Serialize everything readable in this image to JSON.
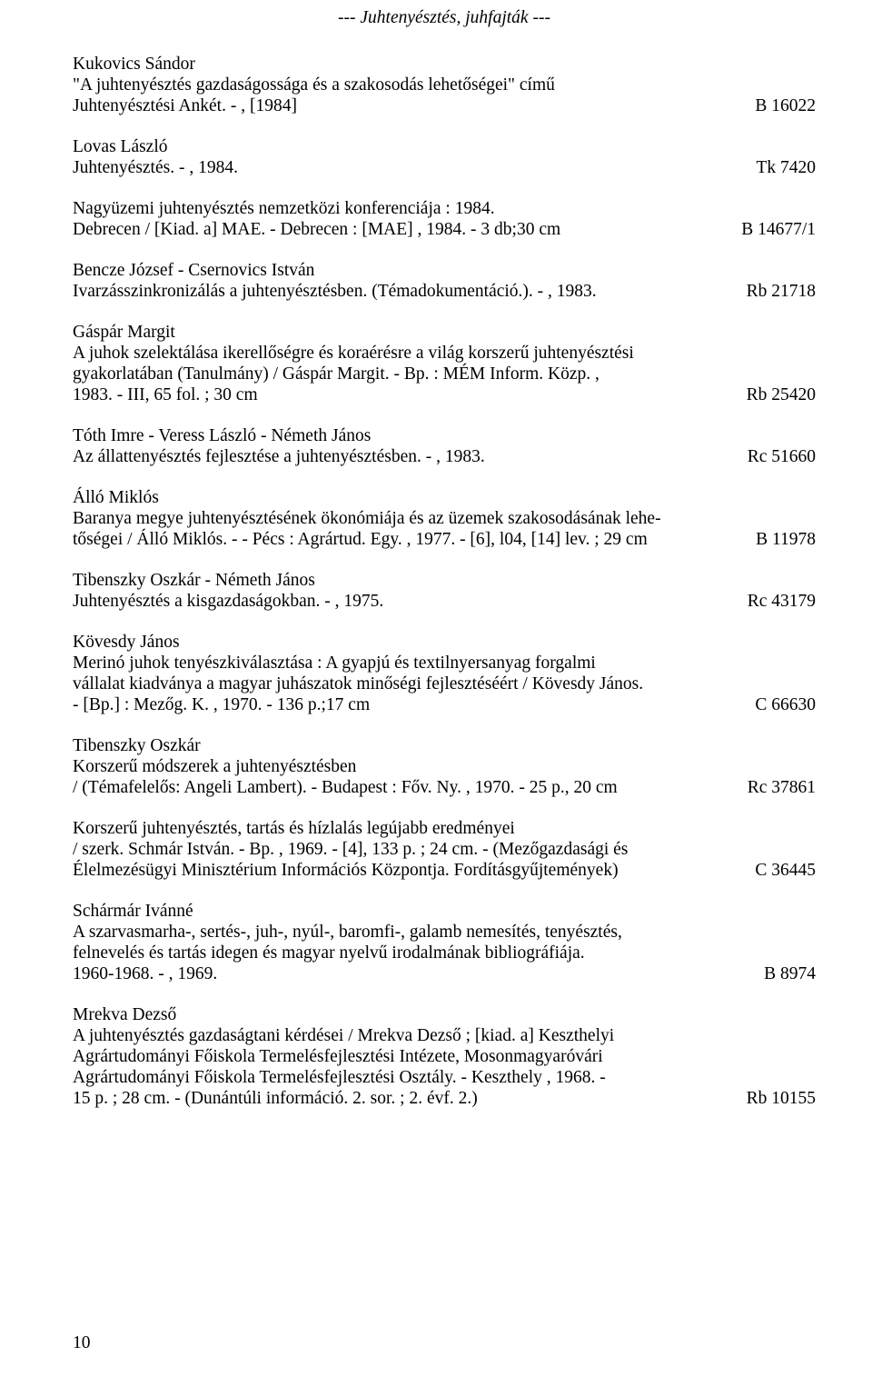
{
  "header": "--- Juhtenyésztés, juhfajták ---",
  "entries": [
    {
      "lines": [
        "Kukovics Sándor",
        "\"A juhtenyésztés gazdaságossága és a szakosodás lehetőségei\" című",
        "Juhtenyésztési Ankét. - , [1984]"
      ],
      "code": "B 16022"
    },
    {
      "lines": [
        "Lovas László",
        "Juhtenyésztés. - , 1984."
      ],
      "code": "Tk 7420"
    },
    {
      "lines": [
        "Nagyüzemi juhtenyésztés nemzetközi konferenciája : 1984.",
        "Debrecen / [Kiad. a] MAE. - Debrecen : [MAE] , 1984. - 3 db;30 cm"
      ],
      "code": "B 14677/1"
    },
    {
      "lines": [
        "Bencze József - Csernovics István",
        "Ivarzásszinkronizálás a juhtenyésztésben. (Témadokumentáció.). - , 1983."
      ],
      "code": "Rb 21718"
    },
    {
      "lines": [
        "Gáspár Margit",
        "A juhok szelektálása ikerellőségre és koraérésre a világ korszerű juhtenyésztési",
        "gyakorlatában (Tanulmány) / Gáspár Margit. - Bp. : MÉM Inform. Közp. ,",
        "1983. - III, 65 fol. ; 30 cm"
      ],
      "code": "Rb 25420"
    },
    {
      "lines": [
        "Tóth Imre - Veress László - Németh János",
        "Az állattenyésztés fejlesztése a juhtenyésztésben. - , 1983."
      ],
      "code": "Rc 51660"
    },
    {
      "lines": [
        "Álló Miklós",
        "Baranya megye juhtenyésztésének ökonómiája és az üzemek szakosodásának lehe-",
        "tőségei / Álló Miklós. - - Pécs : Agrártud. Egy. , 1977. - [6], l04, [14] lev. ; 29 cm"
      ],
      "code": "B 11978"
    },
    {
      "lines": [
        "Tibenszky Oszkár - Németh János",
        "Juhtenyésztés a kisgazdaságokban. - , 1975."
      ],
      "code": "Rc 43179"
    },
    {
      "lines": [
        "Kövesdy János",
        "Merinó juhok tenyészkiválasztása : A gyapjú és textilnyersanyag forgalmi",
        "vállalat kiadványa a magyar juhászatok minőségi fejlesztéséért / Kövesdy János.",
        "- [Bp.] : Mezőg. K. , 1970. - 136 p.;17 cm"
      ],
      "code": "C 66630"
    },
    {
      "lines": [
        "Tibenszky Oszkár",
        "Korszerű módszerek a juhtenyésztésben",
        "/ (Témafelelős: Angeli Lambert). - Budapest : Főv. Ny. , 1970. - 25 p., 20 cm"
      ],
      "code": "Rc 37861"
    },
    {
      "lines": [
        "Korszerű juhtenyésztés, tartás és hízlalás legújabb eredményei",
        "/ szerk. Schmár István. - Bp. , 1969. - [4], 133 p. ; 24 cm. - (Mezőgazdasági és",
        "Élelmezésügyi Minisztérium Információs Központja. Fordításgyűjtemények)"
      ],
      "code": "C 36445"
    },
    {
      "lines": [
        "Schármár Ivánné",
        "A szarvasmarha-, sertés-, juh-, nyúl-, baromfi-, galamb nemesítés, tenyésztés,",
        "felnevelés és tartás idegen és magyar nyelvű irodalmának bibliográfiája.",
        "1960-1968. - , 1969."
      ],
      "code": "B 8974"
    },
    {
      "lines": [
        "Mrekva Dezső",
        "A juhtenyésztés gazdaságtani kérdései / Mrekva Dezső ; [kiad. a] Keszthelyi",
        "Agrártudományi Főiskola Termelésfejlesztési Intézete, Mosonmagyaróvári",
        "Agrártudományi Főiskola Termelésfejlesztési Osztály. - Keszthely , 1968. -",
        "15 p. ; 28 cm. - (Dunántúli információ. 2. sor. ; 2. évf. 2.)"
      ],
      "code": "Rb 10155"
    }
  ],
  "page_number": "10"
}
